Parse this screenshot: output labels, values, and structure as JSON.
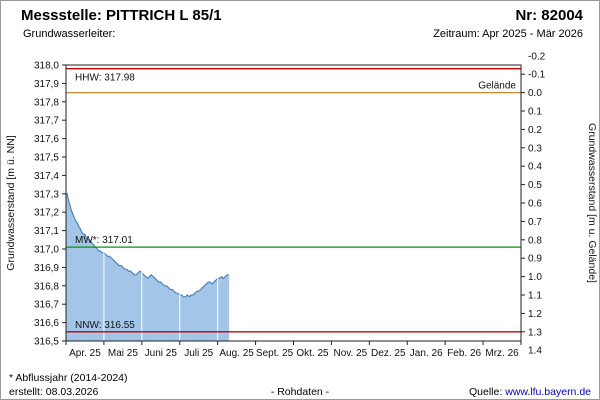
{
  "header": {
    "title": "Messstelle: PITTRICH L 85/1",
    "number": "Nr: 82004",
    "aquifer_label": "Grundwasserleiter:",
    "period_label": "Zeitraum: Apr 2025 - Mär 2026"
  },
  "footer": {
    "note": "* Abflussjahr (2014-2024)",
    "created": "erstellt: 08.03.2026",
    "center": "- Rohdaten -",
    "source_label": "Quelle:",
    "source_link": "www.lfu.bayern.de"
  },
  "chart_data": {
    "type": "area",
    "ylabel_left": "Grundwasserstand [m ü. NN]",
    "ylabel_right": "Grundwasserstand [m u. Gelände]",
    "ylim_left": [
      316.5,
      318.0
    ],
    "y_tick_step": 0.1,
    "right_axis": {
      "surface_elevation": 317.85,
      "tick_min": -0.2,
      "tick_max": 1.4,
      "step": 0.1
    },
    "x_categories": [
      "Apr. 25",
      "Mai 25",
      "Juni 25",
      "Juli 25",
      "Aug. 25",
      "Sept. 25",
      "Okt. 25",
      "Nov. 25",
      "Dez. 25",
      "Jan. 26",
      "Feb. 26",
      "Mrz. 26"
    ],
    "grid_color": "#ffffff",
    "border_color": "#222222",
    "reference_lines": [
      {
        "name": "HHW",
        "label": "HHW: 317.98",
        "value": 317.98,
        "color": "#cc0000",
        "label_side": "left",
        "label_pos": "below"
      },
      {
        "name": "Gelände",
        "label": "Gelände",
        "value": 317.85,
        "color": "#cc8833",
        "label_side": "right",
        "label_pos": "above"
      },
      {
        "name": "MW",
        "label": "MW*: 317.01",
        "value": 317.01,
        "color": "#009900",
        "label_side": "left",
        "label_pos": "above"
      },
      {
        "name": "NNW",
        "label": "NNW: 316.55",
        "value": 316.55,
        "color": "#cc0000",
        "label_side": "left",
        "label_pos": "above"
      }
    ],
    "series": [
      {
        "name": "Grundwasserstand Rohdaten",
        "line_color": "#4d82be",
        "fill_color": "#a3c6e8",
        "points": [
          [
            0.0,
            317.29
          ],
          [
            0.03,
            317.3
          ],
          [
            0.07,
            317.26
          ],
          [
            0.1,
            317.24
          ],
          [
            0.14,
            317.21
          ],
          [
            0.18,
            317.19
          ],
          [
            0.22,
            317.17
          ],
          [
            0.26,
            317.15
          ],
          [
            0.3,
            317.14
          ],
          [
            0.34,
            317.12
          ],
          [
            0.38,
            317.11
          ],
          [
            0.42,
            317.09
          ],
          [
            0.46,
            317.08
          ],
          [
            0.5,
            317.08
          ],
          [
            0.54,
            317.06
          ],
          [
            0.58,
            317.05
          ],
          [
            0.62,
            317.05
          ],
          [
            0.66,
            317.04
          ],
          [
            0.7,
            317.03
          ],
          [
            0.74,
            317.02
          ],
          [
            0.78,
            317.01
          ],
          [
            0.82,
            317.0
          ],
          [
            0.86,
            316.99
          ],
          [
            0.9,
            316.99
          ],
          [
            0.94,
            316.98
          ],
          [
            1.0,
            316.98
          ],
          [
            1.05,
            316.97
          ],
          [
            1.1,
            316.96
          ],
          [
            1.15,
            316.96
          ],
          [
            1.2,
            316.95
          ],
          [
            1.25,
            316.94
          ],
          [
            1.3,
            316.93
          ],
          [
            1.35,
            316.92
          ],
          [
            1.4,
            316.91
          ],
          [
            1.45,
            316.91
          ],
          [
            1.5,
            316.9
          ],
          [
            1.55,
            316.89
          ],
          [
            1.6,
            316.89
          ],
          [
            1.65,
            316.88
          ],
          [
            1.7,
            316.88
          ],
          [
            1.75,
            316.87
          ],
          [
            1.8,
            316.86
          ],
          [
            1.85,
            316.86
          ],
          [
            1.9,
            316.87
          ],
          [
            1.95,
            316.88
          ],
          [
            2.0,
            316.87
          ],
          [
            2.05,
            316.86
          ],
          [
            2.1,
            316.85
          ],
          [
            2.15,
            316.84
          ],
          [
            2.2,
            316.85
          ],
          [
            2.25,
            316.86
          ],
          [
            2.3,
            316.85
          ],
          [
            2.35,
            316.84
          ],
          [
            2.4,
            316.83
          ],
          [
            2.45,
            316.82
          ],
          [
            2.5,
            316.82
          ],
          [
            2.55,
            316.81
          ],
          [
            2.6,
            316.8
          ],
          [
            2.65,
            316.8
          ],
          [
            2.7,
            316.79
          ],
          [
            2.75,
            316.78
          ],
          [
            2.8,
            316.78
          ],
          [
            2.85,
            316.77
          ],
          [
            2.9,
            316.76
          ],
          [
            2.95,
            316.76
          ],
          [
            3.0,
            316.75
          ],
          [
            3.05,
            316.75
          ],
          [
            3.1,
            316.74
          ],
          [
            3.15,
            316.74
          ],
          [
            3.2,
            316.75
          ],
          [
            3.25,
            316.74
          ],
          [
            3.3,
            316.75
          ],
          [
            3.35,
            316.75
          ],
          [
            3.4,
            316.76
          ],
          [
            3.45,
            316.77
          ],
          [
            3.5,
            316.77
          ],
          [
            3.55,
            316.78
          ],
          [
            3.6,
            316.79
          ],
          [
            3.65,
            316.8
          ],
          [
            3.7,
            316.81
          ],
          [
            3.75,
            316.82
          ],
          [
            3.8,
            316.82
          ],
          [
            3.85,
            316.81
          ],
          [
            3.9,
            316.82
          ],
          [
            3.95,
            316.83
          ],
          [
            4.0,
            316.84
          ],
          [
            4.05,
            316.84
          ],
          [
            4.1,
            316.85
          ],
          [
            4.15,
            316.84
          ],
          [
            4.2,
            316.85
          ],
          [
            4.25,
            316.86
          ],
          [
            4.3,
            316.86
          ]
        ]
      }
    ]
  }
}
